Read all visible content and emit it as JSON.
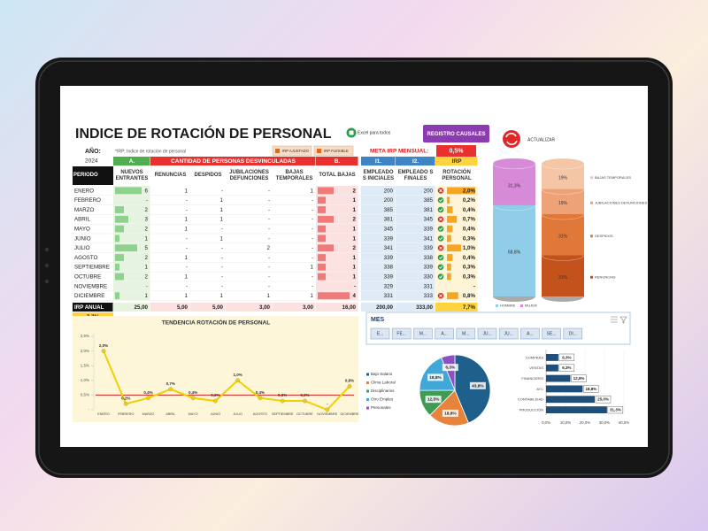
{
  "header": {
    "title": "INDICE DE ROTACIÓN DE PERSONAL",
    "logo": "Excel para todos",
    "note": "*IRP: Indice de rotación de personal",
    "year_label": "AÑO:",
    "year": "2024",
    "buttons": [
      "IRP AJUSTADO",
      "IRP FLEXIBLE",
      "REGISTRO CAUSALES",
      "ACTUALIZAR"
    ],
    "target_label": "META IRP MENSUAL:",
    "target": "0,5%"
  },
  "table": {
    "groups": [
      "A.",
      "CANTIDAD DE PERSONAS DESVINCULADAS",
      "B.",
      "I1.",
      "I2.",
      "IRP"
    ],
    "columns": [
      "PERIODO",
      "NUEVOS ENTRANTES",
      "RENUNCIAS",
      "DESPIDOS",
      "JUBILACIONES DEFUNCIONES",
      "BAJAS TEMPORALES",
      "TOTAL BAJAS",
      "EMPLEADO S INICIALES",
      "EMPLEADO S FINALES",
      "ROTACIÓN PERSONAL"
    ],
    "rows": [
      [
        "ENERO",
        6,
        1,
        "-",
        "-",
        1,
        2,
        200,
        200,
        "2,0%"
      ],
      [
        "FEBRERO",
        "-",
        "-",
        1,
        "-",
        "-",
        1,
        200,
        385,
        "0,2%"
      ],
      [
        "MARZO",
        2,
        "-",
        1,
        "-",
        "-",
        1,
        385,
        381,
        "0,4%"
      ],
      [
        "ABRIL",
        3,
        1,
        1,
        "-",
        "-",
        2,
        381,
        345,
        "0,7%"
      ],
      [
        "MAYO",
        2,
        1,
        "-",
        "-",
        "-",
        1,
        345,
        339,
        "0,4%"
      ],
      [
        "JUNIO",
        1,
        "-",
        1,
        "-",
        "-",
        1,
        339,
        341,
        "0,3%"
      ],
      [
        "JULIO",
        5,
        "-",
        "-",
        2,
        "-",
        2,
        341,
        339,
        "1,0%"
      ],
      [
        "AGOSTO",
        2,
        1,
        "-",
        "-",
        "-",
        1,
        339,
        338,
        "0,4%"
      ],
      [
        "SEPTIEMBRE",
        1,
        "-",
        "-",
        "-",
        1,
        1,
        338,
        339,
        "0,3%"
      ],
      [
        "OCTUBRE",
        2,
        1,
        "-",
        "-",
        "-",
        1,
        339,
        330,
        "0,3%"
      ],
      [
        "NOVIEMBRE",
        "-",
        "-",
        "-",
        "-",
        "-",
        "-",
        329,
        331,
        "-"
      ],
      [
        "DICIEMBRE",
        1,
        1,
        1,
        1,
        1,
        4,
        331,
        333,
        "0,8%"
      ]
    ],
    "totals": [
      "IRP ANUAL",
      "25,00",
      "5,00",
      "5,00",
      "3,00",
      "3,00",
      "16,00",
      "200,00",
      "333,00",
      "7,7%"
    ],
    "annual": "7,7%"
  },
  "slicer": {
    "title": "MES",
    "items": [
      "E...",
      "FE...",
      "M...",
      "A...",
      "M...",
      "JU...",
      "JU...",
      "A...",
      "SE...",
      "DI..."
    ]
  },
  "chart_data": [
    {
      "type": "line",
      "title": "TENDENCIA ROTACIÓN DE PERSONAL",
      "categories": [
        "ENERO",
        "FEBRERO",
        "MARZO",
        "ABRIL",
        "MAYO",
        "JUNIO",
        "JULIO",
        "AGOSTO",
        "SEPTIEMBRE",
        "OCTUBRE",
        "NOVIEMBRE",
        "DICIEMBRE"
      ],
      "values": [
        2.0,
        0.2,
        0.4,
        0.7,
        0.4,
        0.3,
        1.0,
        0.4,
        0.3,
        0.3,
        0,
        0.8
      ],
      "value_labels": [
        "2,0%",
        "0,2%",
        "0,4%",
        "0,7%",
        "0,4%",
        "0,3%",
        "1,0%",
        "0,4%",
        "0,3%",
        "0,3%",
        "-",
        "0,8%"
      ],
      "color": "#f2cf00",
      "target": 0.5,
      "target_color": "#d62020",
      "ylim": [
        0,
        2.5
      ],
      "yticks": [
        {
          "value": 0,
          "label": "-"
        },
        {
          "value": 0.5,
          "label": "0,5%"
        },
        {
          "value": 1.0,
          "label": "1,0%"
        },
        {
          "value": 1.5,
          "label": "1,5%"
        },
        {
          "value": 2.0,
          "label": "2,0%"
        },
        {
          "value": 2.5,
          "label": "2,5%"
        }
      ]
    },
    {
      "type": "bar",
      "stacked": true,
      "categories": [
        null,
        null
      ],
      "ylim": [
        0,
        100
      ],
      "series": [
        {
          "name": "HOMBRE",
          "color": "#8fcde9",
          "values": [
            68.8,
            null
          ],
          "value_labels": [
            "68,8%",
            null
          ]
        },
        {
          "name": "MUJER",
          "color": "#d78ad8",
          "values": [
            31.3,
            null
          ],
          "value_labels": [
            "31,3%",
            null
          ]
        },
        {
          "name": "RENUNCIAS",
          "color": "#c4521c",
          "values": [
            null,
            31
          ],
          "value_labels": [
            null,
            "31%"
          ]
        },
        {
          "name": "DESPIDOS",
          "color": "#e0783a",
          "values": [
            null,
            31
          ],
          "value_labels": [
            null,
            "31%"
          ]
        },
        {
          "name": "JUBILACIONES DEFUNCIONES",
          "color": "#eda277",
          "values": [
            null,
            19
          ],
          "value_labels": [
            null,
            "19%"
          ]
        },
        {
          "name": "BAJAS TEMPORALES",
          "color": "#f5c6a6",
          "values": [
            null,
            19
          ],
          "value_labels": [
            null,
            "19%"
          ]
        }
      ]
    },
    {
      "type": "pie",
      "categories": [
        "Bajo Salario",
        "Clima Laboral",
        "Disciplinarios",
        "Otro Empleo",
        "Personales"
      ],
      "values": [
        43.8,
        18.8,
        12.5,
        18.8,
        6.3
      ],
      "value_labels": [
        "43,8%",
        "18,8%",
        "12,5%",
        "18,8%",
        "6,3%"
      ],
      "colors": [
        "#1f5f8b",
        "#e8833a",
        "#3f9a54",
        "#3fa8d8",
        "#8e4fc0"
      ]
    },
    {
      "type": "hbar",
      "categories": [
        "COMPRAS",
        "VENTAS",
        "FINANCIERO",
        "ATC",
        "CONTABILIDAD",
        "PRODUCCIÓN"
      ],
      "values": [
        6.3,
        6.3,
        12.5,
        18.8,
        25.0,
        31.3
      ],
      "value_labels": [
        "6,3%",
        "6,3%",
        "12,5%",
        "18,8%",
        "25,0%",
        "31,3%"
      ],
      "color": "#1f4e79",
      "xlim": [
        0,
        40
      ],
      "xticks": [
        {
          "value": 0,
          "label": "0,0%"
        },
        {
          "value": 10,
          "label": "10,0%"
        },
        {
          "value": 20,
          "label": "20,0%"
        },
        {
          "value": 30,
          "label": "30,0%"
        },
        {
          "value": 40,
          "label": "40,0%"
        }
      ]
    }
  ]
}
